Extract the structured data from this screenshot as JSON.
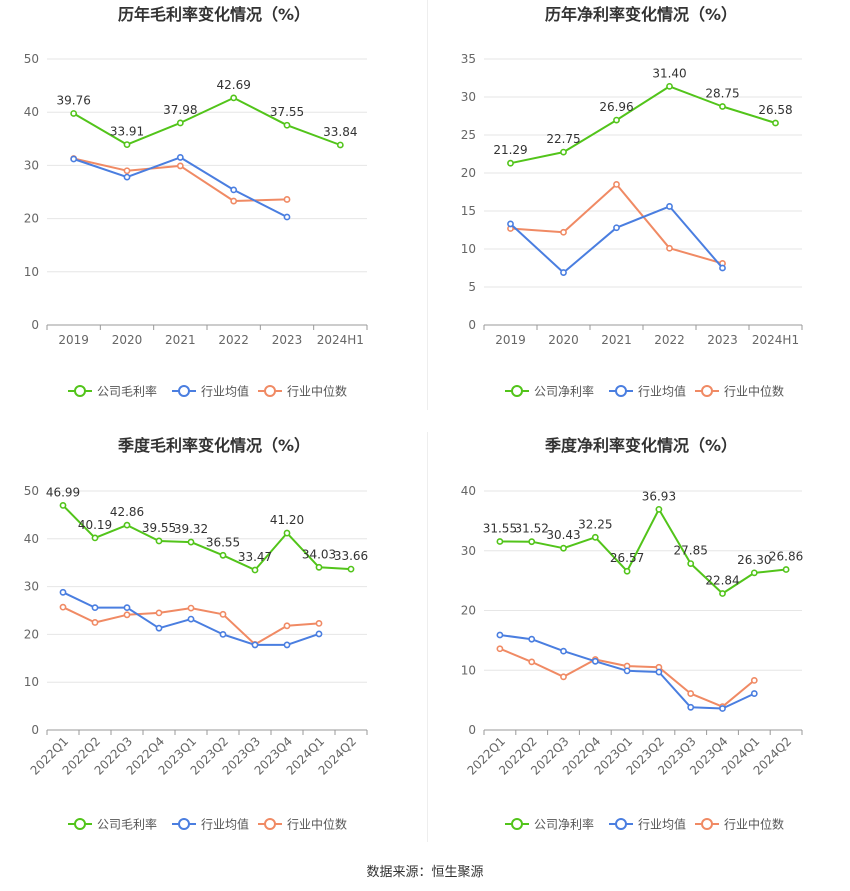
{
  "colors": {
    "company": "#52c41a",
    "industry_avg": "#4a7ee0",
    "industry_median": "#f08a64",
    "grid": "#e6e6e6",
    "axis": "#999999",
    "text": "#666666",
    "label": "#333333"
  },
  "legend": {
    "company_gross": "公司毛利率",
    "company_net": "公司净利率",
    "industry_avg": "行业均值",
    "industry_median": "行业中位数"
  },
  "footer": "数据来源：恒生聚源",
  "chart_data": [
    {
      "type": "line",
      "title": "历年毛利率变化情况（%）",
      "categories": [
        "2019",
        "2020",
        "2021",
        "2022",
        "2023",
        "2024H1"
      ],
      "ylim": [
        0,
        50
      ],
      "yticks": [
        0,
        10,
        20,
        30,
        40,
        50
      ],
      "series": [
        {
          "name": "公司毛利率",
          "values": [
            39.76,
            33.91,
            37.98,
            42.69,
            37.55,
            33.84
          ],
          "labels": [
            "39.76",
            "33.91",
            "37.98",
            "42.69",
            "37.55",
            "33.84"
          ]
        },
        {
          "name": "行业均值",
          "values": [
            31.2,
            27.8,
            31.5,
            25.4,
            20.3,
            null
          ]
        },
        {
          "name": "行业中位数",
          "values": [
            31.3,
            29.0,
            29.9,
            23.3,
            23.6,
            null
          ]
        }
      ]
    },
    {
      "type": "line",
      "title": "历年净利率变化情况（%）",
      "categories": [
        "2019",
        "2020",
        "2021",
        "2022",
        "2023",
        "2024H1"
      ],
      "ylim": [
        0,
        35
      ],
      "yticks": [
        0,
        5,
        10,
        15,
        20,
        25,
        30,
        35
      ],
      "series": [
        {
          "name": "公司净利率",
          "values": [
            21.29,
            22.75,
            26.96,
            31.4,
            28.75,
            26.58
          ],
          "labels": [
            "21.29",
            "22.75",
            "26.96",
            "31.40",
            "28.75",
            "26.58"
          ]
        },
        {
          "name": "行业均值",
          "values": [
            13.3,
            6.9,
            12.8,
            15.6,
            7.5,
            null
          ]
        },
        {
          "name": "行业中位数",
          "values": [
            12.7,
            12.2,
            18.5,
            10.1,
            8.1,
            null
          ]
        }
      ]
    },
    {
      "type": "line",
      "title": "季度毛利率变化情况（%）",
      "categories": [
        "2022Q1",
        "2022Q2",
        "2022Q3",
        "2022Q4",
        "2023Q1",
        "2023Q2",
        "2023Q3",
        "2023Q4",
        "2024Q1",
        "2024Q2"
      ],
      "ylim": [
        0,
        50
      ],
      "yticks": [
        0,
        10,
        20,
        30,
        40,
        50
      ],
      "series": [
        {
          "name": "公司毛利率",
          "values": [
            46.99,
            40.19,
            42.86,
            39.55,
            39.32,
            36.55,
            33.47,
            41.2,
            34.03,
            33.66
          ],
          "labels": [
            "46.99",
            "40.19",
            "42.86",
            "39.55",
            "39.32",
            "36.55",
            "33.47",
            "41.20",
            "34.03",
            "33.66"
          ]
        },
        {
          "name": "行业均值",
          "values": [
            28.8,
            25.6,
            25.6,
            21.3,
            23.2,
            20.0,
            17.8,
            17.8,
            20.1,
            null
          ]
        },
        {
          "name": "行业中位数",
          "values": [
            25.7,
            22.5,
            24.1,
            24.5,
            25.5,
            24.2,
            17.9,
            21.8,
            22.3,
            null
          ]
        }
      ]
    },
    {
      "type": "line",
      "title": "季度净利率变化情况（%）",
      "categories": [
        "2022Q1",
        "2022Q2",
        "2022Q3",
        "2022Q4",
        "2023Q1",
        "2023Q2",
        "2023Q3",
        "2023Q4",
        "2024Q1",
        "2024Q2"
      ],
      "ylim": [
        0,
        40
      ],
      "yticks": [
        0,
        10,
        20,
        30,
        40
      ],
      "series": [
        {
          "name": "公司净利率",
          "values": [
            31.55,
            31.52,
            30.43,
            32.25,
            26.57,
            36.93,
            27.85,
            22.84,
            26.3,
            26.86
          ],
          "labels": [
            "31.55",
            "31.52",
            "30.43",
            "32.25",
            "26.57",
            "36.93",
            "27.85",
            "22.84",
            "26.30",
            "26.86"
          ]
        },
        {
          "name": "行业均值",
          "values": [
            15.9,
            15.2,
            13.2,
            11.5,
            9.9,
            9.7,
            3.8,
            3.6,
            6.1,
            null
          ]
        },
        {
          "name": "行业中位数",
          "values": [
            13.6,
            11.4,
            8.9,
            11.8,
            10.7,
            10.5,
            6.1,
            3.9,
            8.3,
            null
          ]
        }
      ]
    }
  ]
}
